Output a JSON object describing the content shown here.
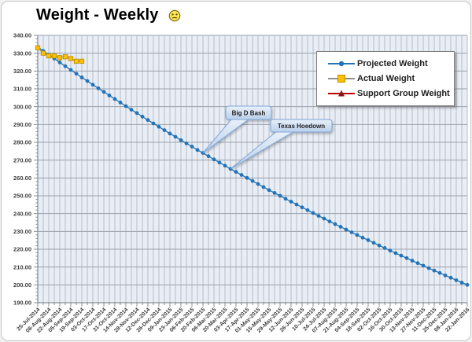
{
  "icons": {
    "title_icon": "smiley-face-icon"
  },
  "colors": {
    "frame_border": "#c9c9c9",
    "plot_background": "#e9edf6",
    "v_gridline": "#b2b8c2",
    "h_gridline": "#9aa1ab",
    "axis_line": "#848b94",
    "callout_fill_top": "#eaf1fa",
    "callout_fill_bottom": "#b9cfeb",
    "callout_border": "#7fa8da",
    "legend_border": "#7f7f7f"
  },
  "chart_data": {
    "type": "line",
    "title": "Weight - Weekly",
    "grid": "both",
    "legend_position": "top-right",
    "plot_bg": "#e9edf6",
    "y_axis": {
      "min": 190,
      "max": 340,
      "step": 10,
      "minor_step": 2,
      "format": "0.00",
      "tick_labels": [
        "340.00",
        "330.00",
        "320.00",
        "310.00",
        "300.00",
        "290.00",
        "280.00",
        "270.00",
        "260.00",
        "250.00",
        "240.00",
        "230.00",
        "220.00",
        "210.00",
        "200.00",
        "190.00"
      ]
    },
    "x_axis": {
      "unit": "weekly",
      "points_count": 79,
      "label_every": 2,
      "labels": [
        "25-Jul-2014",
        "08-Aug-2014",
        "22-Aug-2014",
        "05-Sep-2014",
        "19-Sep-2014",
        "03-Oct-2014",
        "17-Oct-2014",
        "31-Oct-2014",
        "14-Nov-2014",
        "28-Nov-2014",
        "12-Dec-2014",
        "26-Dec-2014",
        "09-Jan-2015",
        "23-Jan-2015",
        "06-Feb-2015",
        "20-Feb-2015",
        "06-Mar-2015",
        "20-Mar-2015",
        "03-Apr-2015",
        "17-Apr-2015",
        "01-May-2015",
        "15-May-2015",
        "29-May-2015",
        "12-Jun-2015",
        "26-Jun-2015",
        "10-Jul-2015",
        "24-Jul-2015",
        "07-Aug-2015",
        "21-Aug-2015",
        "04-Sep-2015",
        "18-Sep-2015",
        "02-Oct-2015",
        "16-Oct-2015",
        "30-Oct-2015",
        "13-Nov-2015",
        "27-Nov-2015",
        "11-Dec-2015",
        "25-Dec-2015",
        "08-Jan-2016",
        "22-Jan-2016"
      ]
    },
    "series": [
      {
        "name": "Projected Weight",
        "marker": "circle",
        "color": "#2273b8",
        "values": [
          333.5,
          331.3,
          329.1,
          327.0,
          324.8,
          322.7,
          320.6,
          318.5,
          316.4,
          314.4,
          312.3,
          310.3,
          308.3,
          306.3,
          304.3,
          302.3,
          300.3,
          298.3,
          296.4,
          294.4,
          292.5,
          290.6,
          288.7,
          286.8,
          284.9,
          283.1,
          281.2,
          279.4,
          277.6,
          275.7,
          274.0,
          272.2,
          270.4,
          268.6,
          266.9,
          265.1,
          263.4,
          261.7,
          260.0,
          258.3,
          256.6,
          254.9,
          253.2,
          251.6,
          250.0,
          248.3,
          246.7,
          245.1,
          243.5,
          241.9,
          240.3,
          238.7,
          237.2,
          235.6,
          234.1,
          232.6,
          231.0,
          229.5,
          228.0,
          226.5,
          225.1,
          223.6,
          222.1,
          220.7,
          219.2,
          217.8,
          216.4,
          215.0,
          213.6,
          212.2,
          210.8,
          209.4,
          208.0,
          206.7,
          205.3,
          204.0,
          202.6,
          201.3,
          200.0
        ]
      },
      {
        "name": "Actual Weight",
        "marker": "square",
        "color": "#ffc000",
        "marker_border": "#bd9000",
        "line_color": "#8f8f8f",
        "values": [
          333.0,
          330.0,
          328.5,
          328.5,
          327.5,
          328.0,
          327.0,
          325.5,
          325.5
        ]
      },
      {
        "name": "Support Group Weight",
        "marker": "triangle",
        "color": "#c00000",
        "values": []
      }
    ],
    "annotations": [
      {
        "text": "Big D Bash",
        "anchor_index": 30,
        "box": {
          "x": 285,
          "y": 133,
          "w": 58,
          "h": 17
        }
      },
      {
        "text": "Texas Hoedown",
        "anchor_index": 35,
        "box": {
          "x": 342,
          "y": 150,
          "w": 78,
          "h": 16
        }
      }
    ]
  }
}
